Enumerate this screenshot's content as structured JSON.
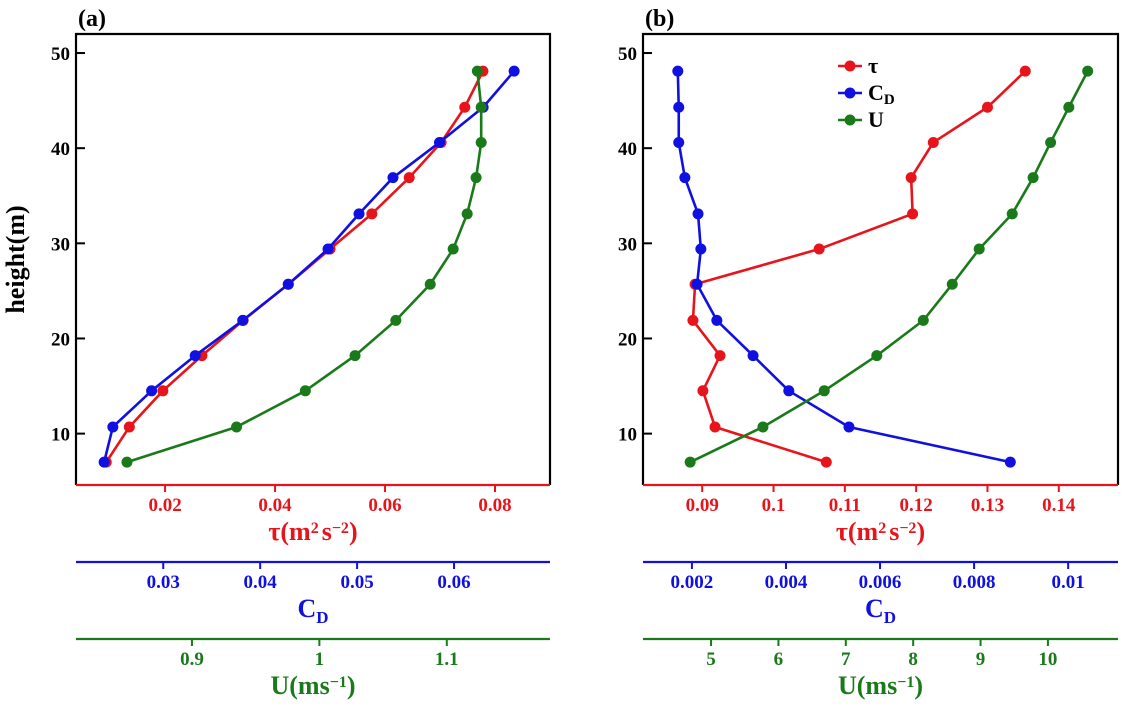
{
  "chart_data": [
    {
      "type": "line",
      "panel_label": "(a)",
      "ylabel": "height(m)",
      "ylim": [
        4.6,
        52
      ],
      "yticks": [
        10,
        20,
        30,
        40,
        50
      ],
      "y": [
        7.0,
        10.7,
        14.5,
        18.2,
        21.9,
        25.7,
        29.4,
        33.1,
        36.9,
        40.6,
        44.3,
        48.1
      ],
      "legend": null,
      "x_axes": [
        {
          "key": "tau",
          "label": "τ(m²s⁻²)",
          "label_base": "τ(m",
          "label_sup1": "2",
          "label_mid": "s",
          "label_sup2": "−2",
          "label_end": ")",
          "color": "#e8141b",
          "xlim": [
            0.0038,
            0.09
          ],
          "ticks": [
            0.02,
            0.04,
            0.06,
            0.08
          ],
          "tick_labels": [
            "0.02",
            "0.04",
            "0.06",
            "0.08"
          ]
        },
        {
          "key": "cd",
          "label": "C_D",
          "label_base": "C",
          "label_sub": "D",
          "color": "#1010e0",
          "xlim": [
            0.021,
            0.0699
          ],
          "ticks": [
            0.03,
            0.04,
            0.05,
            0.06
          ],
          "tick_labels": [
            "0.03",
            "0.04",
            "0.05",
            "0.06"
          ]
        },
        {
          "key": "u",
          "label": "U(ms⁻¹)",
          "label_base": "U(ms",
          "label_sup": "−1",
          "label_end": ")",
          "color": "#1a7a1a",
          "xlim": [
            0.809,
            1.181
          ],
          "ticks": [
            0.9,
            1.0,
            1.1
          ],
          "tick_labels": [
            "0.9",
            "1",
            "1.1"
          ]
        }
      ],
      "series": [
        {
          "name": "τ",
          "axis": "tau",
          "color": "#e8141b",
          "values": [
            0.0093,
            0.0135,
            0.0196,
            0.0267,
            0.0342,
            0.0424,
            0.05,
            0.0576,
            0.0644,
            0.0702,
            0.0745,
            0.0778
          ]
        },
        {
          "name": "C_D",
          "axis": "cd",
          "color": "#1010e0",
          "values": [
            0.0239,
            0.0248,
            0.0288,
            0.0333,
            0.0382,
            0.0429,
            0.047,
            0.0502,
            0.0537,
            0.0585,
            0.063,
            0.0662
          ]
        },
        {
          "name": "U",
          "axis": "u",
          "color": "#1a7a1a",
          "values": [
            0.849,
            0.935,
            0.989,
            1.028,
            1.06,
            1.087,
            1.105,
            1.116,
            1.123,
            1.127,
            1.127,
            1.124
          ]
        }
      ]
    },
    {
      "type": "line",
      "panel_label": "(b)",
      "ylabel": "",
      "ylim": [
        4.6,
        52
      ],
      "yticks": [
        10,
        20,
        30,
        40,
        50
      ],
      "y": [
        7.0,
        10.7,
        14.5,
        18.2,
        21.9,
        25.7,
        29.4,
        33.1,
        36.9,
        40.6,
        44.3,
        48.1
      ],
      "legend": {
        "placement": "top-center",
        "entries": [
          {
            "text": "τ",
            "sub": "",
            "color": "#e8141b"
          },
          {
            "text": "C",
            "sub": "D",
            "color": "#1010e0"
          },
          {
            "text": "U",
            "sub": "",
            "color": "#1a7a1a"
          }
        ]
      },
      "x_axes": [
        {
          "key": "tau",
          "label": "τ(m²s⁻²)",
          "label_base": "τ(m",
          "label_sup1": "2",
          "label_mid": "s",
          "label_sup2": "−2",
          "label_end": ")",
          "color": "#e8141b",
          "xlim": [
            0.0817,
            0.1483
          ],
          "ticks": [
            0.09,
            0.1,
            0.11,
            0.12,
            0.13,
            0.14
          ],
          "tick_labels": [
            "0.09",
            "0.1",
            "0.11",
            "0.12",
            "0.13",
            "0.14"
          ]
        },
        {
          "key": "cd",
          "label": "C_D",
          "label_base": "C",
          "label_sub": "D",
          "color": "#1010e0",
          "xlim": [
            0.00096,
            0.01106
          ],
          "ticks": [
            0.002,
            0.004,
            0.006,
            0.008,
            0.01
          ],
          "tick_labels": [
            "0.002",
            "0.004",
            "0.006",
            "0.008",
            "0.01"
          ]
        },
        {
          "key": "u",
          "label": "U(ms⁻¹)",
          "label_base": "U(ms",
          "label_sup": "−1",
          "label_end": ")",
          "color": "#1a7a1a",
          "xlim": [
            3.99,
            11.04
          ],
          "ticks": [
            5,
            6,
            7,
            8,
            9,
            10
          ],
          "tick_labels": [
            "5",
            "6",
            "7",
            "8",
            "9",
            "10"
          ]
        }
      ],
      "series": [
        {
          "name": "τ",
          "axis": "tau",
          "color": "#e8141b",
          "values": [
            0.1074,
            0.0918,
            0.0901,
            0.0925,
            0.0887,
            0.089,
            0.1064,
            0.1195,
            0.1193,
            0.1224,
            0.13,
            0.1353
          ]
        },
        {
          "name": "C_D",
          "axis": "cd",
          "color": "#1010e0",
          "values": [
            0.00877,
            0.00534,
            0.00406,
            0.0033,
            0.00253,
            0.00211,
            0.00219,
            0.00213,
            0.00185,
            0.00172,
            0.00172,
            0.0017
          ]
        },
        {
          "name": "U",
          "axis": "u",
          "color": "#1a7a1a",
          "values": [
            4.69,
            5.77,
            6.68,
            7.46,
            8.15,
            8.58,
            8.98,
            9.47,
            9.78,
            10.04,
            10.31,
            10.59
          ]
        }
      ]
    }
  ]
}
